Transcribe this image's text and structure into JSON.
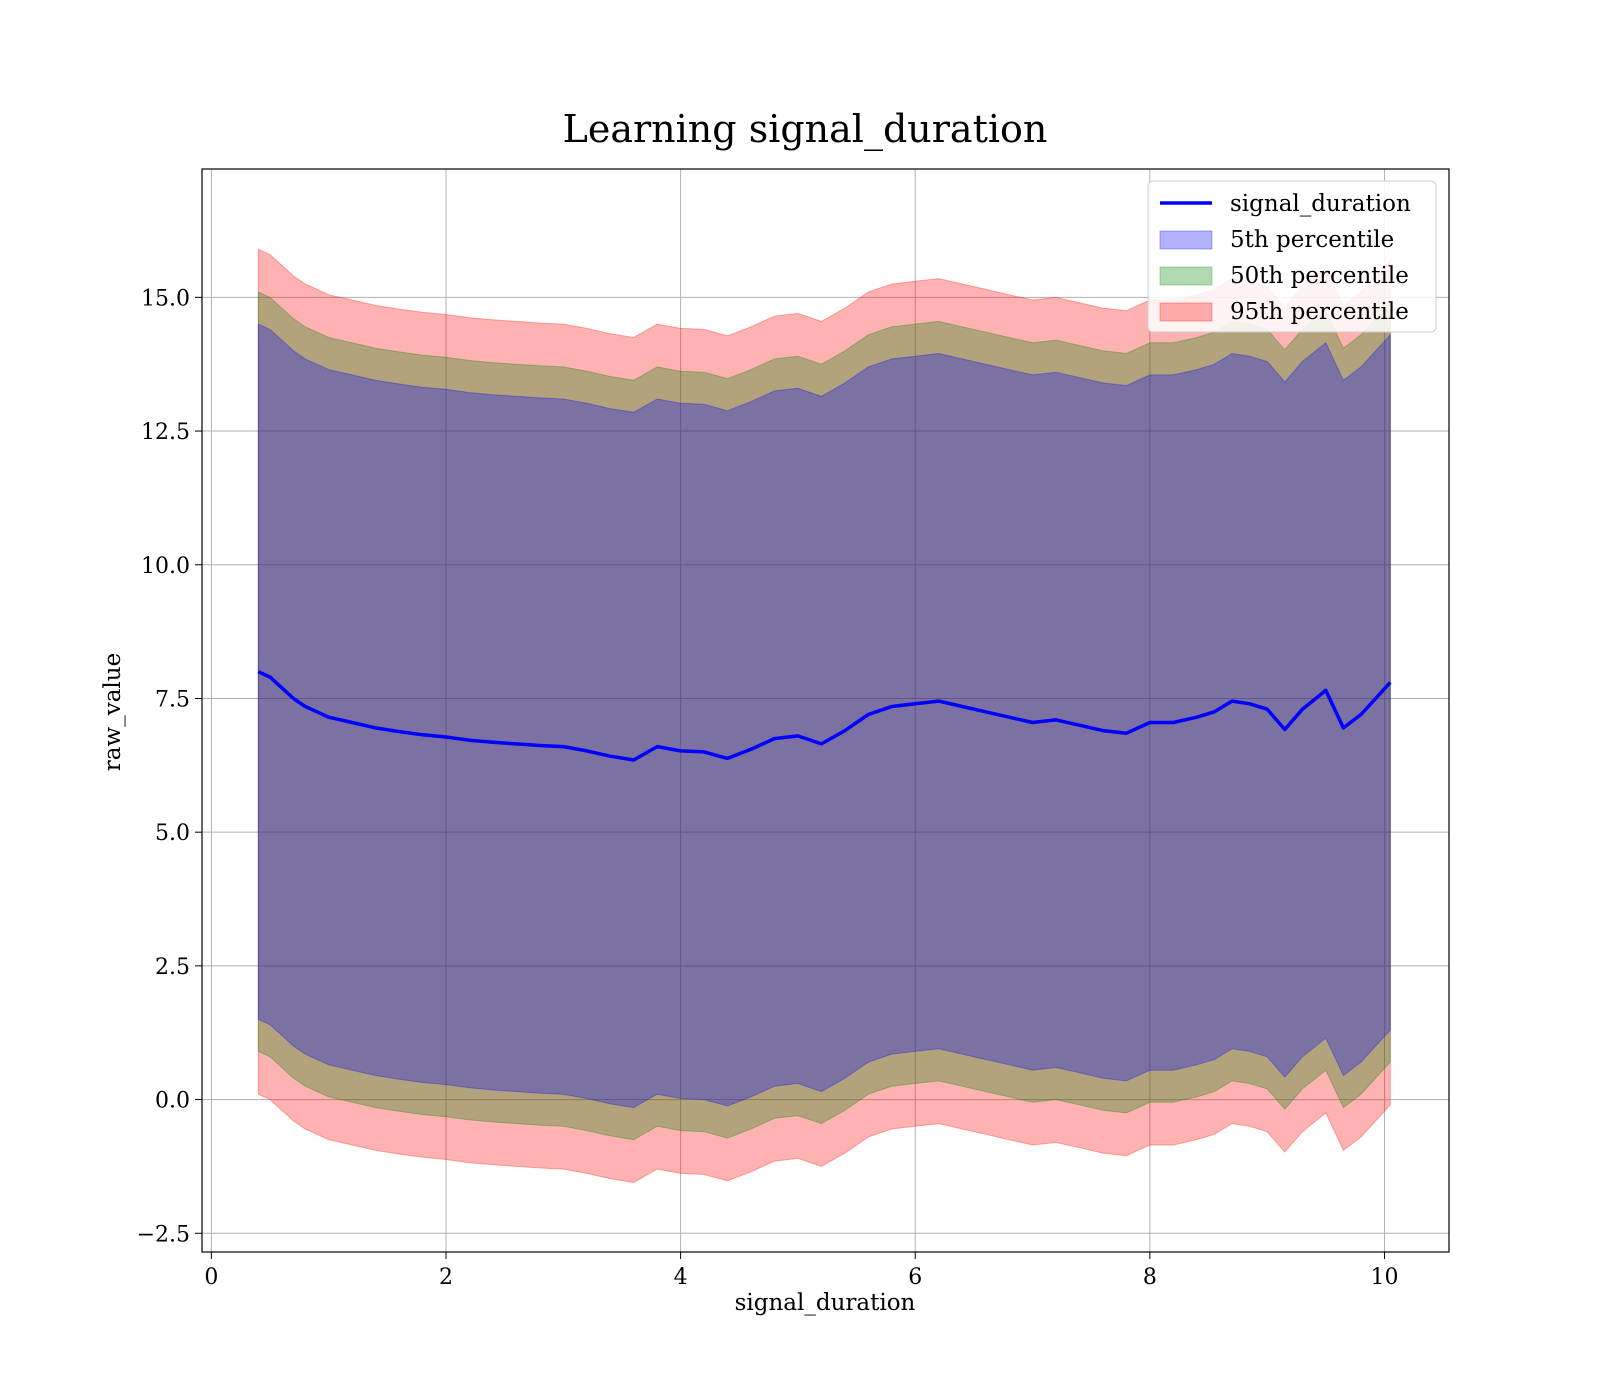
{
  "chart_data": {
    "type": "area",
    "title": "Learning signal_duration",
    "xlabel": "signal_duration",
    "ylabel": "raw_value",
    "xlim": [
      -0.08,
      10.55
    ],
    "ylim": [
      -2.85,
      17.4
    ],
    "xticks": [
      0,
      2,
      4,
      6,
      8,
      10
    ],
    "xtick_labels": [
      "0",
      "2",
      "4",
      "6",
      "8",
      "10"
    ],
    "yticks": [
      -2.5,
      0.0,
      2.5,
      5.0,
      7.5,
      10.0,
      12.5,
      15.0
    ],
    "ytick_labels": [
      "−2.5",
      "0.0",
      "2.5",
      "5.0",
      "7.5",
      "10.0",
      "12.5",
      "15.0"
    ],
    "grid": true,
    "legend_position": "top-right",
    "series": [
      {
        "name": "signal_duration",
        "kind": "line",
        "color": "#0000ff",
        "x": [
          0.4,
          0.5,
          0.6,
          0.7,
          0.8,
          0.9,
          1.0,
          1.2,
          1.4,
          1.6,
          1.8,
          2.0,
          2.2,
          2.4,
          2.6,
          2.8,
          3.0,
          3.2,
          3.4,
          3.6,
          3.8,
          4.0,
          4.2,
          4.4,
          4.6,
          4.8,
          5.0,
          5.2,
          5.4,
          5.6,
          5.8,
          6.0,
          6.2,
          6.4,
          6.6,
          6.8,
          7.0,
          7.2,
          7.4,
          7.6,
          7.8,
          8.0,
          8.2,
          8.4,
          8.55,
          8.7,
          8.85,
          9.0,
          9.15,
          9.3,
          9.5,
          9.65,
          9.8,
          10.05
        ],
        "y": [
          8.0,
          7.9,
          7.7,
          7.5,
          7.35,
          7.25,
          7.15,
          7.05,
          6.95,
          6.88,
          6.82,
          6.78,
          6.72,
          6.68,
          6.65,
          6.62,
          6.6,
          6.52,
          6.42,
          6.35,
          6.6,
          6.52,
          6.5,
          6.38,
          6.55,
          6.75,
          6.8,
          6.65,
          6.9,
          7.2,
          7.35,
          7.4,
          7.45,
          7.35,
          7.25,
          7.15,
          7.05,
          7.1,
          7.0,
          6.9,
          6.85,
          7.05,
          7.05,
          7.15,
          7.25,
          7.45,
          7.4,
          7.3,
          6.92,
          7.3,
          7.65,
          6.95,
          7.2,
          7.8
        ]
      },
      {
        "name": "5th percentile",
        "kind": "band",
        "color": "#0000ff",
        "x": [
          0.4,
          0.5,
          0.6,
          0.7,
          0.8,
          0.9,
          1.0,
          1.2,
          1.4,
          1.6,
          1.8,
          2.0,
          2.2,
          2.4,
          2.6,
          2.8,
          3.0,
          3.2,
          3.4,
          3.6,
          3.8,
          4.0,
          4.2,
          4.4,
          4.6,
          4.8,
          5.0,
          5.2,
          5.4,
          5.6,
          5.8,
          6.0,
          6.2,
          6.4,
          6.6,
          6.8,
          7.0,
          7.2,
          7.4,
          7.6,
          7.8,
          8.0,
          8.2,
          8.4,
          8.55,
          8.7,
          8.85,
          9.0,
          9.15,
          9.3,
          9.5,
          9.65,
          9.8,
          10.05
        ],
        "lower": [
          1.5,
          1.4,
          1.2,
          1.0,
          0.85,
          0.75,
          0.65,
          0.55,
          0.45,
          0.38,
          0.32,
          0.28,
          0.22,
          0.18,
          0.15,
          0.12,
          0.1,
          0.02,
          -0.08,
          -0.15,
          0.1,
          0.02,
          0.0,
          -0.12,
          0.05,
          0.25,
          0.3,
          0.15,
          0.4,
          0.7,
          0.85,
          0.9,
          0.95,
          0.85,
          0.75,
          0.65,
          0.55,
          0.6,
          0.5,
          0.4,
          0.35,
          0.55,
          0.55,
          0.65,
          0.75,
          0.95,
          0.9,
          0.8,
          0.42,
          0.8,
          1.15,
          0.45,
          0.7,
          1.3
        ],
        "upper": [
          14.5,
          14.4,
          14.2,
          14.0,
          13.85,
          13.75,
          13.65,
          13.55,
          13.45,
          13.38,
          13.32,
          13.28,
          13.22,
          13.18,
          13.15,
          13.12,
          13.1,
          13.02,
          12.92,
          12.85,
          13.1,
          13.02,
          13.0,
          12.88,
          13.05,
          13.25,
          13.3,
          13.15,
          13.4,
          13.7,
          13.85,
          13.9,
          13.95,
          13.85,
          13.75,
          13.65,
          13.55,
          13.6,
          13.5,
          13.4,
          13.35,
          13.55,
          13.55,
          13.65,
          13.75,
          13.95,
          13.9,
          13.8,
          13.42,
          13.8,
          14.15,
          13.45,
          13.7,
          14.3
        ]
      },
      {
        "name": "50th percentile",
        "kind": "band",
        "color": "#008000",
        "x": [
          0.4,
          0.5,
          0.6,
          0.7,
          0.8,
          0.9,
          1.0,
          1.2,
          1.4,
          1.6,
          1.8,
          2.0,
          2.2,
          2.4,
          2.6,
          2.8,
          3.0,
          3.2,
          3.4,
          3.6,
          3.8,
          4.0,
          4.2,
          4.4,
          4.6,
          4.8,
          5.0,
          5.2,
          5.4,
          5.6,
          5.8,
          6.0,
          6.2,
          6.4,
          6.6,
          6.8,
          7.0,
          7.2,
          7.4,
          7.6,
          7.8,
          8.0,
          8.2,
          8.4,
          8.55,
          8.7,
          8.85,
          9.0,
          9.15,
          9.3,
          9.5,
          9.65,
          9.8,
          10.05
        ],
        "lower": [
          0.9,
          0.8,
          0.6,
          0.4,
          0.25,
          0.15,
          0.05,
          -0.05,
          -0.15,
          -0.22,
          -0.28,
          -0.32,
          -0.38,
          -0.42,
          -0.45,
          -0.48,
          -0.5,
          -0.58,
          -0.68,
          -0.75,
          -0.5,
          -0.58,
          -0.6,
          -0.72,
          -0.55,
          -0.35,
          -0.3,
          -0.45,
          -0.2,
          0.1,
          0.25,
          0.3,
          0.35,
          0.25,
          0.15,
          0.05,
          -0.05,
          0.0,
          -0.1,
          -0.2,
          -0.25,
          -0.05,
          -0.05,
          0.05,
          0.15,
          0.35,
          0.3,
          0.2,
          -0.18,
          0.2,
          0.55,
          -0.15,
          0.1,
          0.7
        ],
        "upper": [
          15.1,
          15.0,
          14.8,
          14.6,
          14.45,
          14.35,
          14.25,
          14.15,
          14.05,
          13.98,
          13.92,
          13.88,
          13.82,
          13.78,
          13.75,
          13.72,
          13.7,
          13.62,
          13.52,
          13.45,
          13.7,
          13.62,
          13.6,
          13.48,
          13.65,
          13.85,
          13.9,
          13.75,
          14.0,
          14.3,
          14.45,
          14.5,
          14.55,
          14.45,
          14.35,
          14.25,
          14.15,
          14.2,
          14.1,
          14.0,
          13.95,
          14.15,
          14.15,
          14.25,
          14.35,
          14.55,
          14.5,
          14.4,
          14.02,
          14.4,
          14.75,
          14.05,
          14.3,
          14.9
        ]
      },
      {
        "name": "95th percentile",
        "kind": "band",
        "color": "#ff0000",
        "x": [
          0.4,
          0.5,
          0.6,
          0.7,
          0.8,
          0.9,
          1.0,
          1.2,
          1.4,
          1.6,
          1.8,
          2.0,
          2.2,
          2.4,
          2.6,
          2.8,
          3.0,
          3.2,
          3.4,
          3.6,
          3.8,
          4.0,
          4.2,
          4.4,
          4.6,
          4.8,
          5.0,
          5.2,
          5.4,
          5.6,
          5.8,
          6.0,
          6.2,
          6.4,
          6.6,
          6.8,
          7.0,
          7.2,
          7.4,
          7.6,
          7.8,
          8.0,
          8.2,
          8.4,
          8.55,
          8.7,
          8.85,
          9.0,
          9.15,
          9.3,
          9.5,
          9.65,
          9.8,
          10.05
        ],
        "lower": [
          0.1,
          0.0,
          -0.2,
          -0.4,
          -0.55,
          -0.65,
          -0.75,
          -0.85,
          -0.95,
          -1.02,
          -1.08,
          -1.12,
          -1.18,
          -1.22,
          -1.25,
          -1.28,
          -1.3,
          -1.38,
          -1.48,
          -1.55,
          -1.3,
          -1.38,
          -1.4,
          -1.52,
          -1.35,
          -1.15,
          -1.1,
          -1.25,
          -1.0,
          -0.7,
          -0.55,
          -0.5,
          -0.45,
          -0.55,
          -0.65,
          -0.75,
          -0.85,
          -0.8,
          -0.9,
          -1.0,
          -1.05,
          -0.85,
          -0.85,
          -0.75,
          -0.65,
          -0.45,
          -0.5,
          -0.6,
          -0.98,
          -0.6,
          -0.25,
          -0.95,
          -0.7,
          -0.1
        ],
        "upper": [
          15.9,
          15.8,
          15.6,
          15.4,
          15.25,
          15.15,
          15.05,
          14.95,
          14.85,
          14.78,
          14.72,
          14.68,
          14.62,
          14.58,
          14.55,
          14.52,
          14.5,
          14.42,
          14.32,
          14.25,
          14.5,
          14.42,
          14.4,
          14.28,
          14.45,
          14.65,
          14.7,
          14.55,
          14.8,
          15.1,
          15.25,
          15.3,
          15.35,
          15.25,
          15.15,
          15.05,
          14.95,
          15.0,
          14.9,
          14.8,
          14.75,
          14.95,
          14.95,
          15.05,
          15.15,
          15.35,
          15.3,
          15.2,
          14.82,
          15.2,
          15.55,
          14.85,
          15.1,
          15.7
        ]
      }
    ]
  }
}
